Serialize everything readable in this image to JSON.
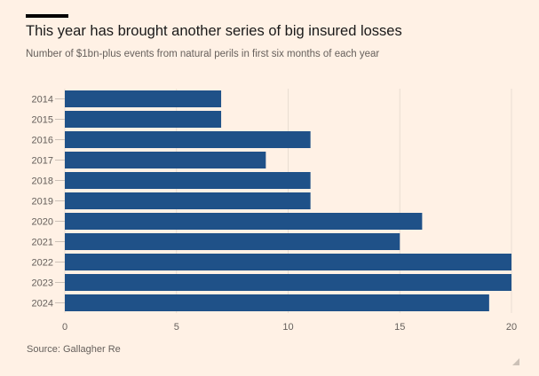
{
  "chart_data": {
    "type": "bar",
    "orientation": "horizontal",
    "title": "This year has brought another series of big insured losses",
    "subtitle": "Number of $1bn-plus events from natural perils in first six months of each year",
    "categories": [
      "2014",
      "2015",
      "2016",
      "2017",
      "2018",
      "2019",
      "2020",
      "2021",
      "2022",
      "2023",
      "2024"
    ],
    "values": [
      7,
      7,
      11,
      9,
      11,
      11,
      16,
      15,
      20,
      20,
      19
    ],
    "xlabel": "",
    "ylabel": "",
    "xlim": [
      0,
      20
    ],
    "xticks": [
      0,
      5,
      10,
      15,
      20
    ],
    "grid": true,
    "bar_color": "#1f5188",
    "source": "Source: Gallagher Re"
  }
}
